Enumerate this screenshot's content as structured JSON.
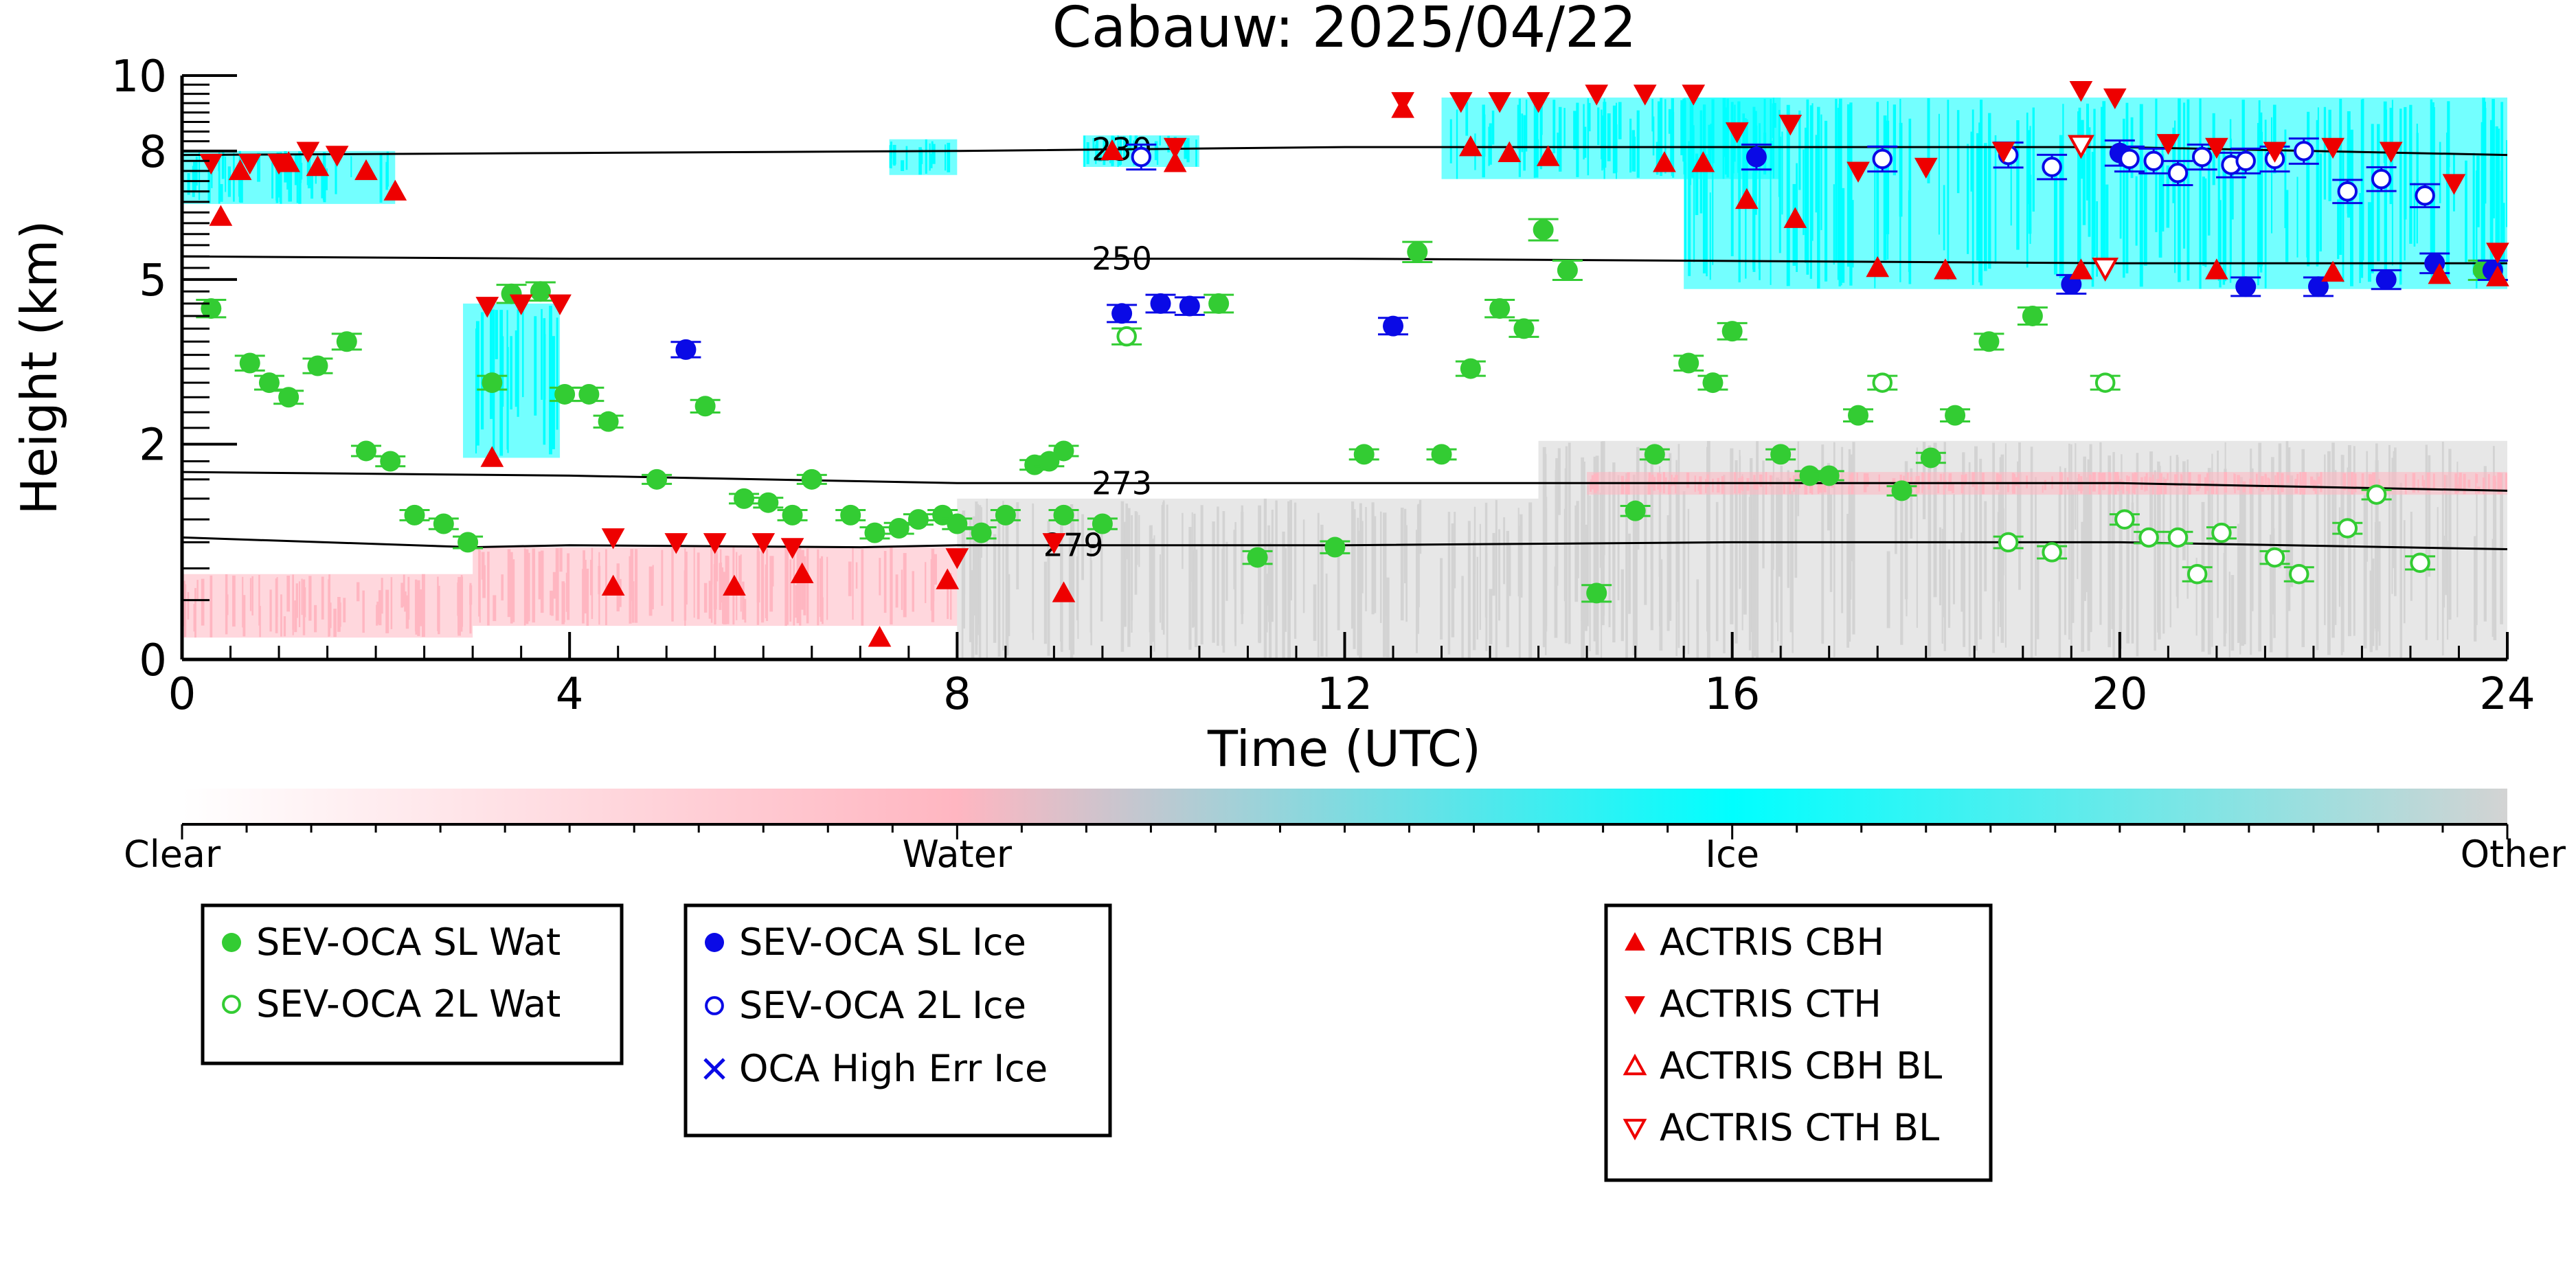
{
  "chart_data": {
    "type": "scatter",
    "title": "Cabauw: 2025/04/22",
    "xlabel": "Time (UTC)",
    "ylabel": "Height (km)",
    "xlim": [
      0,
      24
    ],
    "ylim": [
      0,
      10
    ],
    "x_ticks": [
      0,
      4,
      8,
      12,
      16,
      20,
      24
    ],
    "y_ticks": [
      0,
      2,
      5,
      8,
      10
    ],
    "y_tick_labels": [
      "0",
      "2",
      "5",
      "8",
      "10"
    ],
    "y_scale": "power (reference height display)",
    "colorbar": {
      "labels": [
        "Clear",
        "Water",
        "Ice",
        "Other"
      ],
      "colors": [
        "#ffffff",
        "#ffb6c1",
        "#00ffff",
        "#d3d3d3"
      ]
    },
    "isotherms": [
      {
        "label": "230",
        "points": [
          [
            0,
            7.9
          ],
          [
            4,
            7.95
          ],
          [
            8,
            8.0
          ],
          [
            12,
            8.1
          ],
          [
            16,
            8.1
          ],
          [
            20,
            8.1
          ],
          [
            24,
            7.9
          ]
        ]
      },
      {
        "label": "250",
        "points": [
          [
            0,
            5.5
          ],
          [
            4,
            5.45
          ],
          [
            8,
            5.45
          ],
          [
            12,
            5.45
          ],
          [
            16,
            5.4
          ],
          [
            20,
            5.35
          ],
          [
            24,
            5.35
          ]
        ]
      },
      {
        "label": "273",
        "points": [
          [
            0,
            1.6
          ],
          [
            4,
            1.55
          ],
          [
            8,
            1.45
          ],
          [
            12,
            1.45
          ],
          [
            16,
            1.45
          ],
          [
            20,
            1.45
          ],
          [
            24,
            1.35
          ]
        ]
      },
      {
        "label": "279",
        "points": [
          [
            0,
            0.8
          ],
          [
            3,
            0.7
          ],
          [
            4,
            0.72
          ],
          [
            7,
            0.7
          ],
          [
            8,
            0.72
          ],
          [
            12,
            0.72
          ],
          [
            16,
            0.75
          ],
          [
            20,
            0.75
          ],
          [
            24,
            0.68
          ]
        ]
      }
    ],
    "cloud_regions": [
      {
        "phase": "ice",
        "x0": 0.0,
        "x1": 2.2,
        "y0": 6.7,
        "y1": 8.0
      },
      {
        "phase": "ice",
        "x0": 2.9,
        "x1": 3.9,
        "y0": 1.8,
        "y1": 4.5
      },
      {
        "phase": "ice",
        "x0": 7.3,
        "x1": 8.0,
        "y0": 7.4,
        "y1": 8.3
      },
      {
        "phase": "ice",
        "x0": 9.3,
        "x1": 10.5,
        "y0": 7.6,
        "y1": 8.4
      },
      {
        "phase": "ice",
        "x0": 13.0,
        "x1": 16.5,
        "y0": 7.3,
        "y1": 9.4
      },
      {
        "phase": "ice",
        "x0": 15.5,
        "x1": 24.0,
        "y0": 4.8,
        "y1": 9.4
      },
      {
        "phase": "water",
        "x0": 0.0,
        "x1": 3.0,
        "y0": 0.05,
        "y1": 0.45
      },
      {
        "phase": "water",
        "x0": 3.0,
        "x1": 8.0,
        "y0": 0.1,
        "y1": 0.7
      },
      {
        "phase": "other",
        "x0": 8.0,
        "x1": 14.0,
        "y0": 0.0,
        "y1": 1.25
      },
      {
        "phase": "other",
        "x0": 14.0,
        "x1": 24.0,
        "y0": 0.0,
        "y1": 2.05
      },
      {
        "phase": "water",
        "x0": 14.5,
        "x1": 24.0,
        "y0": 1.3,
        "y1": 1.6
      }
    ],
    "series": [
      {
        "name": "SEV-OCA SL Wat",
        "marker": "filled-circle",
        "color": "#33cc33",
        "points": [
          [
            0.3,
            4.4
          ],
          [
            0.7,
            3.35
          ],
          [
            0.9,
            3.0
          ],
          [
            1.1,
            2.75
          ],
          [
            1.4,
            3.3
          ],
          [
            1.7,
            3.75
          ],
          [
            1.9,
            1.9
          ],
          [
            2.15,
            1.75
          ],
          [
            2.4,
            1.05
          ],
          [
            2.7,
            0.95
          ],
          [
            2.95,
            0.75
          ],
          [
            3.2,
            3.0
          ],
          [
            3.4,
            4.7
          ],
          [
            3.7,
            4.75
          ],
          [
            3.95,
            2.8
          ],
          [
            4.2,
            2.8
          ],
          [
            4.4,
            2.35
          ],
          [
            4.9,
            1.5
          ],
          [
            5.4,
            2.6
          ],
          [
            5.8,
            1.25
          ],
          [
            6.05,
            1.2
          ],
          [
            6.3,
            1.05
          ],
          [
            6.5,
            1.5
          ],
          [
            6.9,
            1.05
          ],
          [
            7.15,
            0.85
          ],
          [
            7.4,
            0.9
          ],
          [
            7.6,
            1.0
          ],
          [
            7.85,
            1.05
          ],
          [
            8.0,
            0.95
          ],
          [
            8.25,
            0.85
          ],
          [
            8.5,
            1.05
          ],
          [
            8.8,
            1.7
          ],
          [
            8.95,
            1.75
          ],
          [
            9.1,
            1.9
          ],
          [
            9.1,
            1.05
          ],
          [
            9.5,
            0.95
          ],
          [
            10.7,
            4.5
          ],
          [
            11.1,
            0.6
          ],
          [
            11.9,
            0.7
          ],
          [
            12.2,
            1.85
          ],
          [
            12.75,
            5.6
          ],
          [
            13.0,
            1.85
          ],
          [
            13.3,
            3.25
          ],
          [
            13.6,
            4.4
          ],
          [
            13.85,
            4.0
          ],
          [
            14.05,
            6.1
          ],
          [
            14.3,
            5.2
          ],
          [
            14.6,
            0.3
          ],
          [
            15.0,
            1.1
          ],
          [
            15.2,
            1.85
          ],
          [
            15.55,
            3.35
          ],
          [
            15.8,
            3.0
          ],
          [
            16.0,
            3.95
          ],
          [
            16.5,
            1.85
          ],
          [
            16.8,
            1.55
          ],
          [
            17.0,
            1.55
          ],
          [
            17.3,
            2.45
          ],
          [
            17.75,
            1.35
          ],
          [
            18.05,
            1.8
          ],
          [
            18.3,
            2.45
          ],
          [
            18.65,
            3.75
          ],
          [
            19.1,
            4.25
          ],
          [
            23.75,
            5.2
          ]
        ]
      },
      {
        "name": "SEV-OCA 2L Wat",
        "marker": "open-circle",
        "color": "#33cc33",
        "points": [
          [
            9.75,
            3.85
          ],
          [
            17.55,
            3.0
          ],
          [
            18.85,
            0.75
          ],
          [
            19.3,
            0.65
          ],
          [
            19.85,
            3.0
          ],
          [
            20.05,
            1.0
          ],
          [
            20.3,
            0.8
          ],
          [
            20.6,
            0.8
          ],
          [
            20.8,
            0.45
          ],
          [
            21.05,
            0.85
          ],
          [
            21.6,
            0.6
          ],
          [
            21.85,
            0.45
          ],
          [
            22.35,
            0.9
          ],
          [
            22.65,
            1.3
          ],
          [
            23.1,
            0.55
          ]
        ]
      },
      {
        "name": "SEV-OCA SL Ice",
        "marker": "filled-circle",
        "color": "#0a0ae6",
        "points": [
          [
            5.2,
            3.6
          ],
          [
            9.7,
            4.3
          ],
          [
            10.1,
            4.5
          ],
          [
            10.4,
            4.45
          ],
          [
            12.5,
            4.05
          ],
          [
            16.25,
            7.85
          ],
          [
            19.5,
            4.9
          ],
          [
            20.0,
            7.95
          ],
          [
            21.3,
            4.85
          ],
          [
            22.05,
            4.85
          ],
          [
            22.75,
            5.0
          ],
          [
            23.25,
            5.35
          ],
          [
            23.85,
            5.2
          ]
        ]
      },
      {
        "name": "SEV-OCA 2L Ice",
        "marker": "open-circle",
        "color": "#0a0ae6",
        "points": [
          [
            9.9,
            7.85
          ],
          [
            17.55,
            7.8
          ],
          [
            18.85,
            7.9
          ],
          [
            19.3,
            7.6
          ],
          [
            20.1,
            7.8
          ],
          [
            20.35,
            7.75
          ],
          [
            20.6,
            7.45
          ],
          [
            20.85,
            7.85
          ],
          [
            21.15,
            7.65
          ],
          [
            21.3,
            7.75
          ],
          [
            21.6,
            7.8
          ],
          [
            21.9,
            8.0
          ],
          [
            22.35,
            7.0
          ],
          [
            22.7,
            7.3
          ],
          [
            23.15,
            6.9
          ]
        ]
      },
      {
        "name": "OCA High Err Ice",
        "marker": "x",
        "color": "#0a0ae6",
        "points": []
      },
      {
        "name": "ACTRIS CBH",
        "marker": "filled-triangle-up",
        "color": "#ee0000",
        "points": [
          [
            0.4,
            6.4
          ],
          [
            0.6,
            7.5
          ],
          [
            1.1,
            7.7
          ],
          [
            1.4,
            7.6
          ],
          [
            1.9,
            7.5
          ],
          [
            2.2,
            7.0
          ],
          [
            3.2,
            1.8
          ],
          [
            4.45,
            0.35
          ],
          [
            5.7,
            0.35
          ],
          [
            6.4,
            0.45
          ],
          [
            7.2,
            0.05
          ],
          [
            7.9,
            0.4
          ],
          [
            9.1,
            0.3
          ],
          [
            9.6,
            8.0
          ],
          [
            10.25,
            7.7
          ],
          [
            12.6,
            9.1
          ],
          [
            13.3,
            8.1
          ],
          [
            13.7,
            7.95
          ],
          [
            14.1,
            7.85
          ],
          [
            15.3,
            7.7
          ],
          [
            15.7,
            7.7
          ],
          [
            16.15,
            6.8
          ],
          [
            16.65,
            6.35
          ],
          [
            17.5,
            5.25
          ],
          [
            18.2,
            5.2
          ],
          [
            19.6,
            5.2
          ],
          [
            21.0,
            5.2
          ],
          [
            22.2,
            5.15
          ],
          [
            23.3,
            5.1
          ],
          [
            23.9,
            5.05
          ]
        ]
      },
      {
        "name": "ACTRIS CTH",
        "marker": "filled-triangle-down",
        "color": "#ee0000",
        "points": [
          [
            0.3,
            7.7
          ],
          [
            0.7,
            7.7
          ],
          [
            1.0,
            7.7
          ],
          [
            1.3,
            8.0
          ],
          [
            1.6,
            7.9
          ],
          [
            3.15,
            4.45
          ],
          [
            3.5,
            4.5
          ],
          [
            3.9,
            4.5
          ],
          [
            4.45,
            0.8
          ],
          [
            5.1,
            0.75
          ],
          [
            5.5,
            0.75
          ],
          [
            6.0,
            0.75
          ],
          [
            6.3,
            0.7
          ],
          [
            8.0,
            0.6
          ],
          [
            9.0,
            0.75
          ],
          [
            10.25,
            8.1
          ],
          [
            12.6,
            9.3
          ],
          [
            13.2,
            9.3
          ],
          [
            13.6,
            9.3
          ],
          [
            14.0,
            9.3
          ],
          [
            14.6,
            9.5
          ],
          [
            15.1,
            9.5
          ],
          [
            15.6,
            9.5
          ],
          [
            16.05,
            8.5
          ],
          [
            16.6,
            8.7
          ],
          [
            17.3,
            7.5
          ],
          [
            18.0,
            7.6
          ],
          [
            18.8,
            8.0
          ],
          [
            19.6,
            9.6
          ],
          [
            19.95,
            9.4
          ],
          [
            20.5,
            8.2
          ],
          [
            21.0,
            8.1
          ],
          [
            21.6,
            8.0
          ],
          [
            22.2,
            8.1
          ],
          [
            22.8,
            8.0
          ],
          [
            23.45,
            7.2
          ],
          [
            23.9,
            5.6
          ]
        ]
      },
      {
        "name": "ACTRIS CBH BL",
        "marker": "open-triangle-up",
        "color": "#ee0000",
        "points": []
      },
      {
        "name": "ACTRIS CTH BL",
        "marker": "open-triangle-down",
        "color": "#ee0000",
        "points": [
          [
            19.6,
            8.15
          ],
          [
            19.85,
            5.25
          ]
        ]
      }
    ],
    "legend": {
      "groups": [
        [
          "SEV-OCA SL Wat",
          "SEV-OCA 2L Wat"
        ],
        [
          "SEV-OCA SL Ice",
          "SEV-OCA 2L Ice",
          "OCA High Err Ice"
        ],
        [
          "ACTRIS CBH",
          "ACTRIS CTH",
          "ACTRIS CBH BL",
          "ACTRIS CTH BL"
        ]
      ],
      "placement": "bottom"
    },
    "grid": false
  }
}
